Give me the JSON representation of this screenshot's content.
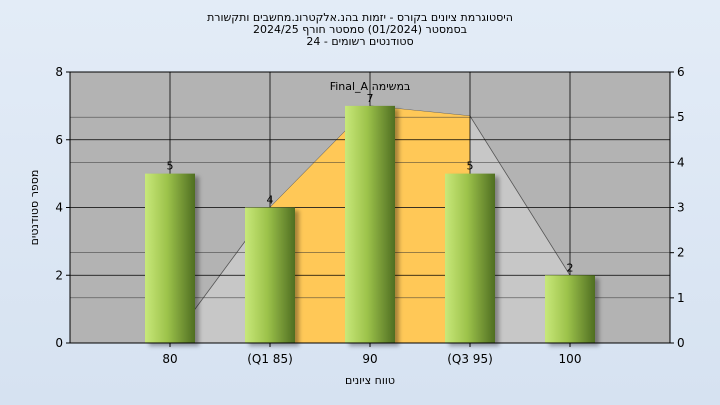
{
  "chart_data": {
    "type": "bar",
    "title_lines": [
      "היסטוגרמת ציונים בקורס - יזמות בהנ.אלקטרונ.מחשבים ותקשורת",
      "בסמסטר  (01/2024)  סמסטר חורף 2024/25",
      "סטודנטים רשומים - 24"
    ],
    "categories": [
      "80",
      "(Q1 85)",
      "90",
      "(Q3 95)",
      "100"
    ],
    "values": [
      5,
      4,
      7,
      5,
      2
    ],
    "xlabel": "טווח ציונים",
    "ylabel": "מספר סטודנטים",
    "ylim": [
      0,
      8
    ],
    "y_ticks": [
      "0",
      "2",
      "4",
      "6",
      "8"
    ],
    "y2lim": [
      0,
      6
    ],
    "y2_ticks": [
      "0",
      "1",
      "2",
      "3",
      "4",
      "5",
      "6"
    ],
    "annotation": "Final_A במשימה",
    "grid": true,
    "colors": {
      "bar_light": "#c8e87a",
      "bar_dark": "#4f6e22",
      "iqr_fill": "#ffc857",
      "range_fill": "#c7c7c7",
      "plot_bg": "#b3b3b3"
    }
  }
}
